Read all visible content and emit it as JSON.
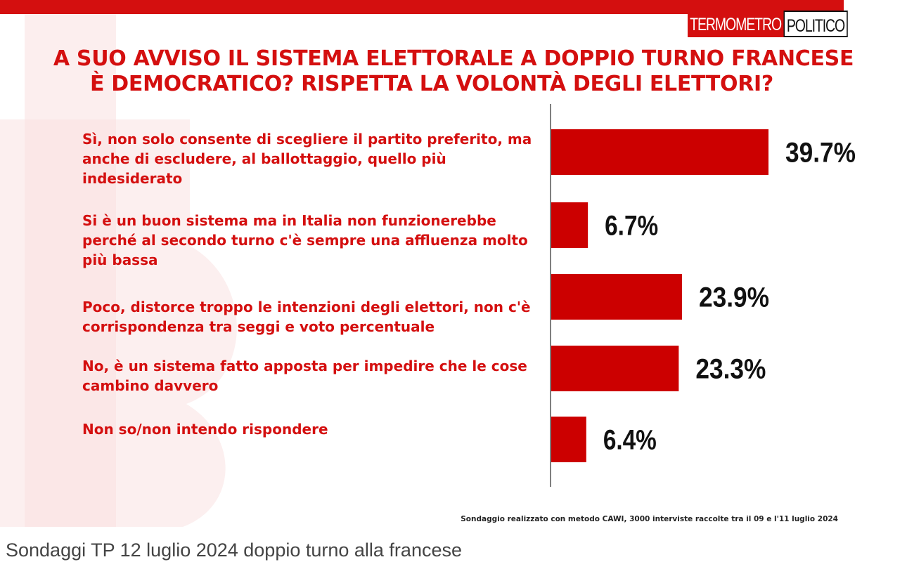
{
  "logo": {
    "part1": "TERMOMETRO",
    "part2": "POLITICO",
    "colors": {
      "red": "#d40f0f",
      "dark": "#111111"
    }
  },
  "chart_data": {
    "type": "bar",
    "orientation": "horizontal",
    "title_lines": [
      "A SUO AVVISO IL SISTEMA ELETTORALE A DOPPIO TURNO FRANCESE",
      "È DEMOCRATICO? RISPETTA LA VOLONTÀ DEGLI ELETTORI?"
    ],
    "categories": [
      "Sì, non solo consente di scegliere il partito preferito, ma anche di escludere, al ballottaggio, quello più indesiderato",
      "Si è un buon sistema ma in Italia non funzionerebbe perché al secondo turno c'è sempre una affluenza molto più bassa",
      "Poco, distorce troppo le intenzioni degli elettori, non c'è corrispondenza tra seggi e voto percentuale",
      "No, è un sistema fatto apposta per impedire che le cose cambino davvero",
      "Non so/non intendo rispondere"
    ],
    "values": [
      39.7,
      6.7,
      23.9,
      23.3,
      6.4
    ],
    "value_labels": [
      "39.7%",
      "6.7%",
      "23.9%",
      "23.3%",
      "6.4%"
    ],
    "unit": "%",
    "bar_color": "#cc0000",
    "text_color": "#d40f0f"
  },
  "footnote": "Sondaggio realizzato con metodo CAWI, 3000 interviste raccolte tra il 09 e l'11 luglio 2024",
  "caption": "Sondaggi TP 12 luglio 2024 doppio turno alla francese"
}
